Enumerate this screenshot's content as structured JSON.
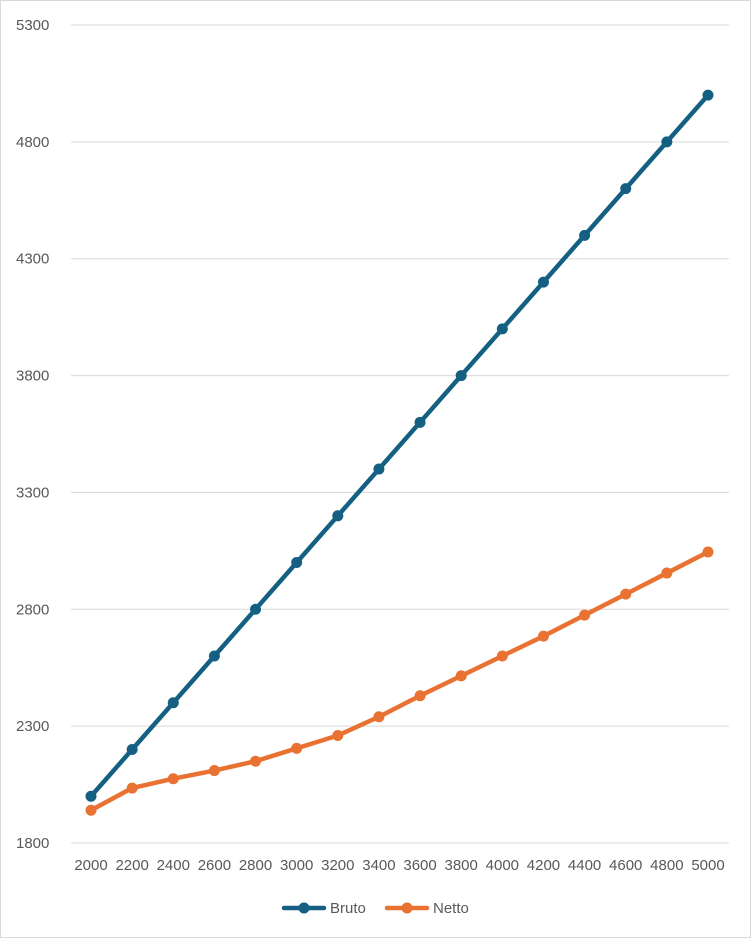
{
  "chart_data": {
    "type": "line",
    "title": "",
    "xlabel": "",
    "ylabel": "",
    "categories": [
      "2000",
      "2200",
      "2400",
      "2600",
      "2800",
      "3000",
      "3200",
      "3400",
      "3600",
      "3800",
      "4000",
      "4200",
      "4400",
      "4600",
      "4800",
      "5000"
    ],
    "yticks": [
      "5300",
      "4800",
      "4300",
      "3800",
      "3300",
      "2800",
      "2300",
      "1800"
    ],
    "ylim": [
      1800,
      5300
    ],
    "grid": true,
    "legend_position": "bottom",
    "series": [
      {
        "name": "Bruto",
        "color": "#156082",
        "values": [
          2000,
          2200,
          2400,
          2600,
          2800,
          3000,
          3200,
          3400,
          3600,
          3800,
          4000,
          4200,
          4400,
          4600,
          4800,
          5000
        ]
      },
      {
        "name": "Netto",
        "color": "#e97132",
        "values": [
          1940,
          2035,
          2075,
          2110,
          2150,
          2205,
          2260,
          2340,
          2430,
          2515,
          2600,
          2685,
          2775,
          2865,
          2955,
          3045
        ]
      }
    ]
  }
}
